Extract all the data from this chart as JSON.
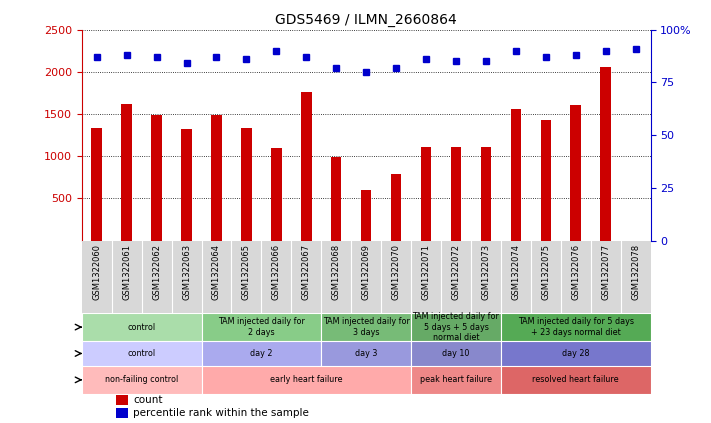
{
  "title": "GDS5469 / ILMN_2660864",
  "samples": [
    "GSM1322060",
    "GSM1322061",
    "GSM1322062",
    "GSM1322063",
    "GSM1322064",
    "GSM1322065",
    "GSM1322066",
    "GSM1322067",
    "GSM1322068",
    "GSM1322069",
    "GSM1322070",
    "GSM1322071",
    "GSM1322072",
    "GSM1322073",
    "GSM1322074",
    "GSM1322075",
    "GSM1322076",
    "GSM1322077",
    "GSM1322078"
  ],
  "counts": [
    1340,
    1620,
    1490,
    1320,
    1490,
    1330,
    1100,
    1760,
    990,
    600,
    790,
    1110,
    1110,
    1110,
    1560,
    1430,
    1610,
    2060,
    0
  ],
  "percentile_ranks": [
    87,
    88,
    87,
    84,
    87,
    86,
    90,
    87,
    82,
    80,
    82,
    86,
    85,
    85,
    90,
    87,
    88,
    90,
    91
  ],
  "bar_color": "#cc0000",
  "dot_color": "#0000cc",
  "ylim_left": [
    0,
    2500
  ],
  "ylim_right": [
    0,
    100
  ],
  "yticks_left": [
    500,
    1000,
    1500,
    2000,
    2500
  ],
  "yticks_right": [
    0,
    25,
    50,
    75,
    100
  ],
  "protocol_groups": [
    {
      "label": "control",
      "start": 0,
      "end": 4,
      "color": "#aaddaa"
    },
    {
      "label": "TAM injected daily for\n2 days",
      "start": 4,
      "end": 8,
      "color": "#88cc88"
    },
    {
      "label": "TAM injected daily for\n3 days",
      "start": 8,
      "end": 11,
      "color": "#77bb77"
    },
    {
      "label": "TAM injected daily for\n5 days + 5 days\nnormal diet",
      "start": 11,
      "end": 14,
      "color": "#66aa66"
    },
    {
      "label": "TAM injected daily for 5 days\n+ 23 days normal diet",
      "start": 14,
      "end": 19,
      "color": "#55aa55"
    }
  ],
  "time_groups": [
    {
      "label": "control",
      "start": 0,
      "end": 4,
      "color": "#ccccff"
    },
    {
      "label": "day 2",
      "start": 4,
      "end": 8,
      "color": "#aaaaee"
    },
    {
      "label": "day 3",
      "start": 8,
      "end": 11,
      "color": "#9999dd"
    },
    {
      "label": "day 10",
      "start": 11,
      "end": 14,
      "color": "#8888cc"
    },
    {
      "label": "day 28",
      "start": 14,
      "end": 19,
      "color": "#7777cc"
    }
  ],
  "disease_groups": [
    {
      "label": "non-failing control",
      "start": 0,
      "end": 4,
      "color": "#ffbbbb"
    },
    {
      "label": "early heart failure",
      "start": 4,
      "end": 11,
      "color": "#ffaaaa"
    },
    {
      "label": "peak heart failure",
      "start": 11,
      "end": 14,
      "color": "#ee8888"
    },
    {
      "label": "resolved heart failure",
      "start": 14,
      "end": 19,
      "color": "#dd6666"
    }
  ],
  "background_color": "#ffffff",
  "plot_bg_color": "#ffffff",
  "xtick_bg_color": "#d8d8d8",
  "grid_color": "#000000"
}
